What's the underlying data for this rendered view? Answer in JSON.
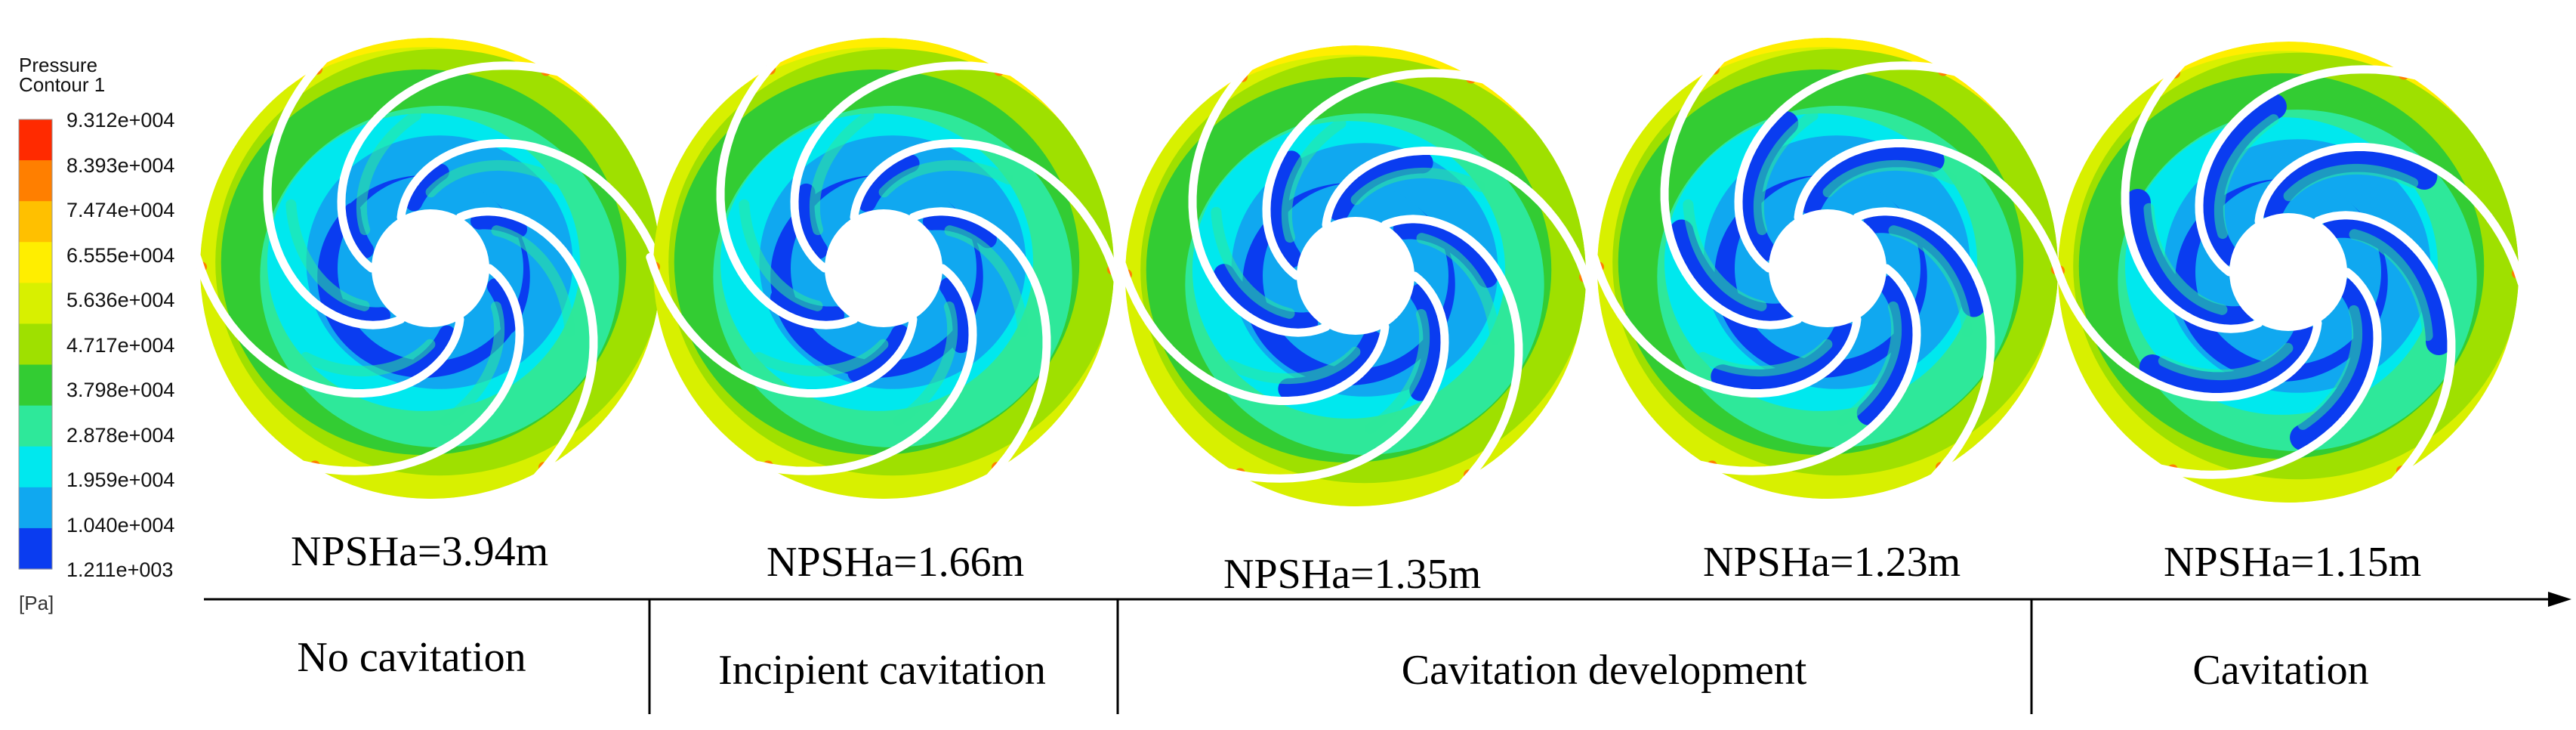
{
  "legend": {
    "title_line1": "Pressure",
    "title_line2": "Contour 1",
    "ticks": [
      "9.312e+004",
      "8.393e+004",
      "7.474e+004",
      "6.555e+004",
      "5.636e+004",
      "4.717e+004",
      "3.798e+004",
      "2.878e+004",
      "1.959e+004",
      "1.040e+004",
      "1.211e+003"
    ],
    "unit": "[Pa]",
    "colors": [
      "#ff2a00",
      "#ff7f00",
      "#ffc000",
      "#ffee00",
      "#d8f000",
      "#9fe000",
      "#33cc33",
      "#2ee89a",
      "#00e8ee",
      "#10a8f0",
      "#0a3cf0"
    ]
  },
  "impellers": [
    {
      "npsh_label": "NPSHa=3.94m",
      "cavitation_extent": 0.0
    },
    {
      "npsh_label": "NPSHa=1.66m",
      "cavitation_extent": 0.15
    },
    {
      "npsh_label": "NPSHa=1.35m",
      "cavitation_extent": 0.45
    },
    {
      "npsh_label": "NPSHa=1.23m",
      "cavitation_extent": 0.7
    },
    {
      "npsh_label": "NPSHa=1.15m",
      "cavitation_extent": 0.9
    }
  ],
  "stages": [
    {
      "label": "No cavitation"
    },
    {
      "label": "Incipient cavitation"
    },
    {
      "label": "Cavitation development"
    },
    {
      "label": "Cavitation"
    }
  ]
}
